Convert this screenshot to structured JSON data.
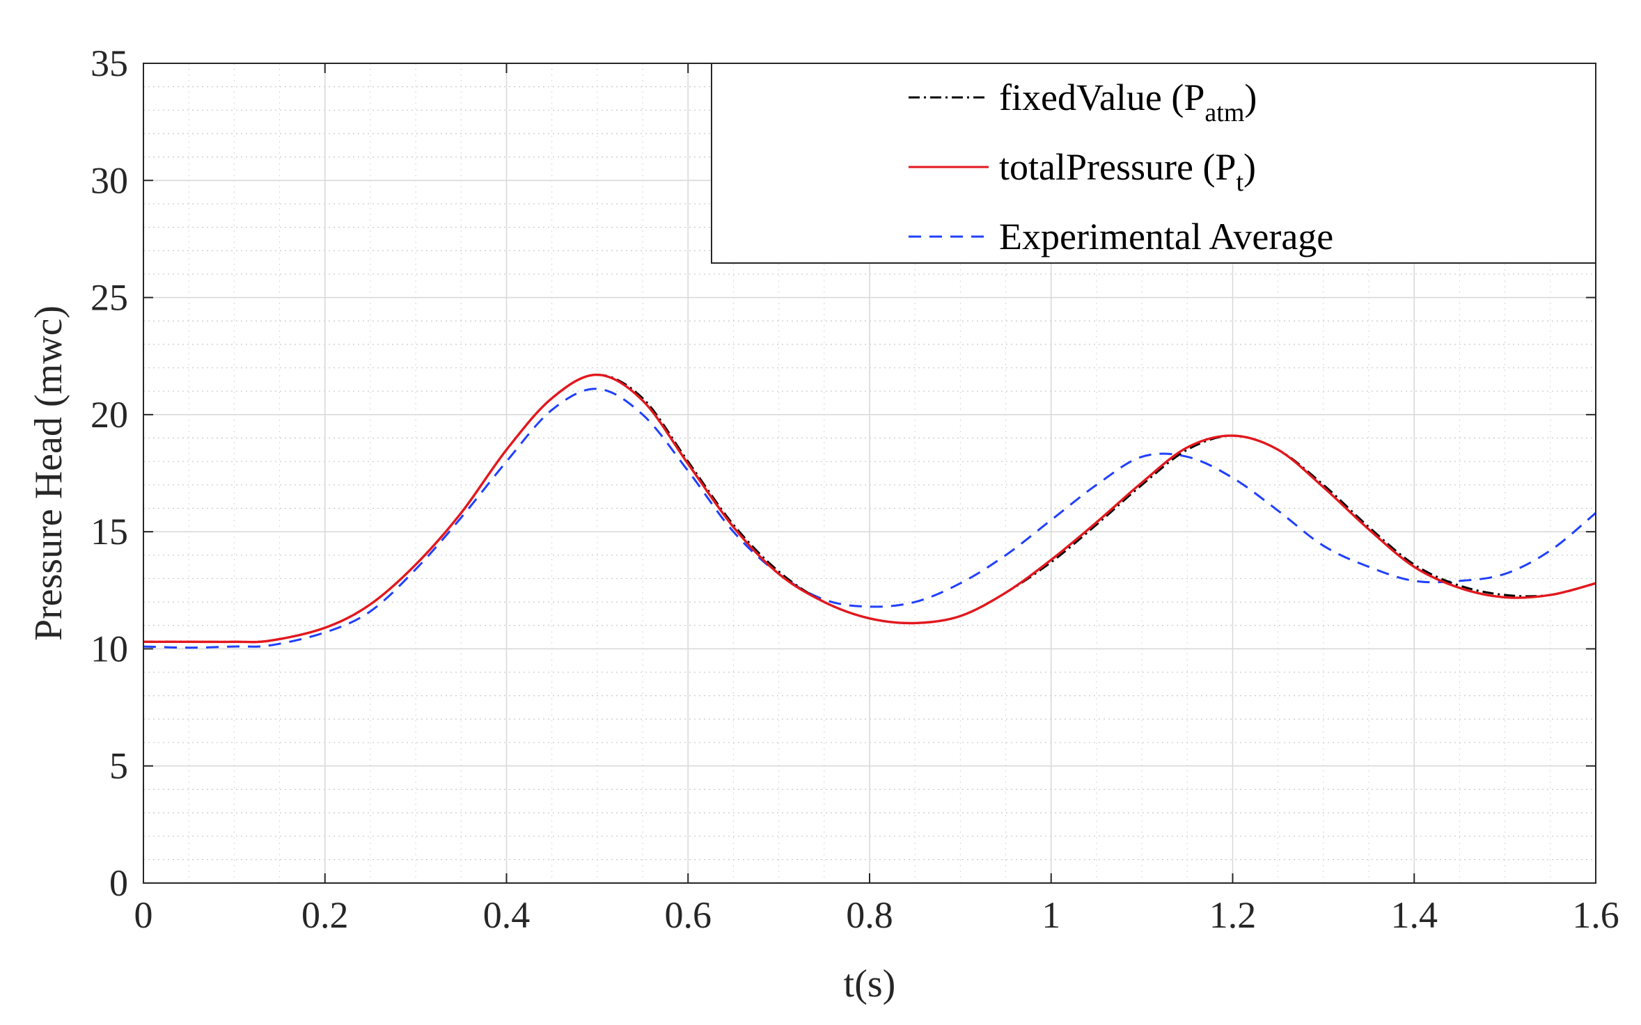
{
  "chart_data": {
    "type": "line",
    "title": "",
    "xlabel": "t(s)",
    "ylabel": "Pressure Head (mwc)",
    "xlim": [
      0,
      1.6
    ],
    "ylim": [
      0,
      35
    ],
    "xticks": [
      "0",
      "0.2",
      "0.4",
      "0.6",
      "0.8",
      "1",
      "1.2",
      "1.4",
      "1.6"
    ],
    "yticks": [
      "0",
      "5",
      "10",
      "15",
      "20",
      "25",
      "30",
      "35"
    ],
    "grid": true,
    "minor_grid": true,
    "legend_position": "top-right",
    "series": [
      {
        "name": "fixedValue (P_atm)",
        "label_main": "fixedValue (P",
        "label_sub": "atm",
        "label_end": ")",
        "color": "#000000",
        "style": "dash-dot",
        "x": [
          0,
          0.05,
          0.1,
          0.14,
          0.2,
          0.25,
          0.3,
          0.35,
          0.4,
          0.45,
          0.5,
          0.55,
          0.6,
          0.65,
          0.7,
          0.75,
          0.8,
          0.85,
          0.9,
          0.95,
          1.0,
          1.05,
          1.1,
          1.15,
          1.2,
          1.25,
          1.3,
          1.35,
          1.4,
          1.45,
          1.5,
          1.55,
          1.6
        ],
        "y": [
          10.3,
          10.3,
          10.3,
          10.35,
          10.9,
          11.9,
          13.6,
          15.8,
          18.5,
          20.7,
          21.7,
          20.7,
          18.0,
          15.3,
          13.3,
          12.0,
          11.3,
          11.1,
          11.4,
          12.4,
          13.7,
          15.3,
          17.0,
          18.5,
          19.1,
          18.5,
          17.0,
          15.2,
          13.6,
          12.7,
          12.3,
          12.3,
          12.8
        ]
      },
      {
        "name": "totalPressure (P_t)",
        "label_main": "totalPressure (P",
        "label_sub": "t",
        "label_end": ")",
        "color": "#e3171d",
        "style": "solid",
        "x": [
          0,
          0.05,
          0.1,
          0.14,
          0.2,
          0.25,
          0.3,
          0.35,
          0.4,
          0.45,
          0.5,
          0.55,
          0.6,
          0.65,
          0.7,
          0.75,
          0.8,
          0.85,
          0.9,
          0.95,
          1.0,
          1.05,
          1.1,
          1.15,
          1.2,
          1.25,
          1.3,
          1.35,
          1.4,
          1.45,
          1.5,
          1.55,
          1.6
        ],
        "y": [
          10.3,
          10.3,
          10.3,
          10.35,
          10.9,
          11.9,
          13.6,
          15.8,
          18.5,
          20.7,
          21.7,
          20.6,
          17.9,
          15.2,
          13.2,
          12.0,
          11.3,
          11.1,
          11.4,
          12.4,
          13.8,
          15.4,
          17.1,
          18.6,
          19.1,
          18.5,
          16.9,
          15.1,
          13.5,
          12.6,
          12.2,
          12.3,
          12.8
        ]
      },
      {
        "name": "Experimental Average",
        "label_main": "Experimental Average",
        "label_sub": "",
        "label_end": "",
        "color": "#1f3fff",
        "style": "dashed",
        "x": [
          0,
          0.05,
          0.1,
          0.14,
          0.2,
          0.25,
          0.3,
          0.35,
          0.4,
          0.45,
          0.5,
          0.55,
          0.6,
          0.65,
          0.7,
          0.75,
          0.8,
          0.85,
          0.9,
          0.95,
          1.0,
          1.05,
          1.1,
          1.15,
          1.2,
          1.25,
          1.3,
          1.35,
          1.4,
          1.45,
          1.5,
          1.55,
          1.6
        ],
        "y": [
          10.1,
          10.05,
          10.1,
          10.15,
          10.7,
          11.6,
          13.4,
          15.6,
          18.0,
          20.2,
          21.1,
          20.0,
          17.6,
          15.0,
          13.2,
          12.1,
          11.8,
          12.0,
          12.8,
          14.0,
          15.5,
          17.0,
          18.2,
          18.2,
          17.3,
          15.9,
          14.4,
          13.5,
          12.9,
          12.9,
          13.2,
          14.2,
          15.8
        ]
      }
    ]
  }
}
